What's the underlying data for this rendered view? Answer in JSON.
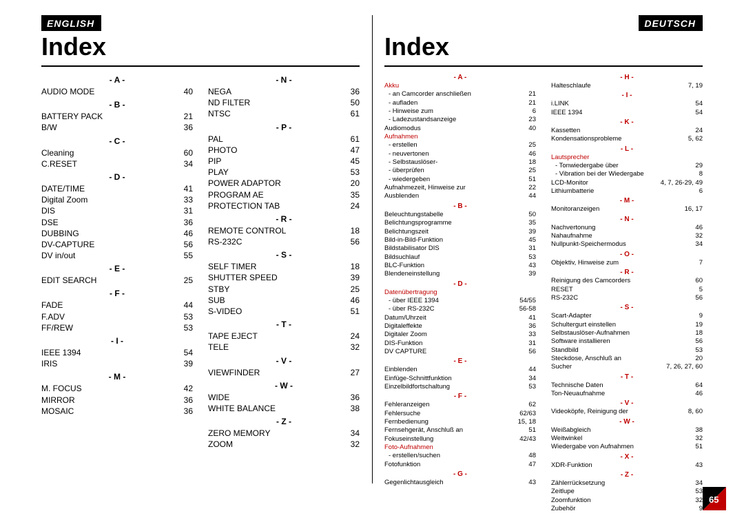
{
  "page_number": "65",
  "english": {
    "lang_label": "ENGLISH",
    "title": "Index",
    "columns": [
      [
        {
          "type": "letter",
          "text": "- A -"
        },
        {
          "type": "entry",
          "label": "AUDIO MODE",
          "page": "40"
        },
        {
          "type": "letter",
          "text": "- B -"
        },
        {
          "type": "entry",
          "label": "BATTERY PACK",
          "page": "21"
        },
        {
          "type": "entry",
          "label": "B/W",
          "page": "36"
        },
        {
          "type": "letter",
          "text": "- C -"
        },
        {
          "type": "entry",
          "label": "Cleaning",
          "page": "60"
        },
        {
          "type": "entry",
          "label": "C.RESET",
          "page": "34"
        },
        {
          "type": "letter",
          "text": "- D -"
        },
        {
          "type": "entry",
          "label": "DATE/TIME",
          "page": "41"
        },
        {
          "type": "entry",
          "label": "Digital Zoom",
          "page": "33"
        },
        {
          "type": "entry",
          "label": "DIS",
          "page": "31"
        },
        {
          "type": "entry",
          "label": "DSE",
          "page": "36"
        },
        {
          "type": "entry",
          "label": "DUBBING",
          "page": "46"
        },
        {
          "type": "entry",
          "label": "DV-CAPTURE",
          "page": "56"
        },
        {
          "type": "entry",
          "label": "DV in/out",
          "page": "55"
        },
        {
          "type": "letter",
          "text": "- E -"
        },
        {
          "type": "entry",
          "label": "EDIT SEARCH",
          "page": "25"
        },
        {
          "type": "letter",
          "text": "- F -"
        },
        {
          "type": "entry",
          "label": "FADE",
          "page": "44"
        },
        {
          "type": "entry",
          "label": "F.ADV",
          "page": "53"
        },
        {
          "type": "entry",
          "label": "FF/REW",
          "page": "53"
        },
        {
          "type": "letter",
          "text": "- I -"
        },
        {
          "type": "entry",
          "label": "IEEE 1394",
          "page": "54"
        },
        {
          "type": "entry",
          "label": "IRIS",
          "page": "39"
        },
        {
          "type": "letter",
          "text": "- M -"
        },
        {
          "type": "entry",
          "label": "M. FOCUS",
          "page": "42"
        },
        {
          "type": "entry",
          "label": "MIRROR",
          "page": "36"
        },
        {
          "type": "entry",
          "label": "MOSAIC",
          "page": "36"
        }
      ],
      [
        {
          "type": "letter",
          "text": "- N -"
        },
        {
          "type": "entry",
          "label": "NEGA",
          "page": "36"
        },
        {
          "type": "entry",
          "label": "ND FILTER",
          "page": "50"
        },
        {
          "type": "entry",
          "label": "NTSC",
          "page": "61"
        },
        {
          "type": "letter",
          "text": "- P -"
        },
        {
          "type": "entry",
          "label": "PAL",
          "page": "61"
        },
        {
          "type": "entry",
          "label": "PHOTO",
          "page": "47"
        },
        {
          "type": "entry",
          "label": "PIP",
          "page": "45"
        },
        {
          "type": "entry",
          "label": "PLAY",
          "page": "53"
        },
        {
          "type": "entry",
          "label": "POWER ADAPTOR",
          "page": "20"
        },
        {
          "type": "entry",
          "label": "PROGRAM AE",
          "page": "35"
        },
        {
          "type": "entry",
          "label": "PROTECTION TAB",
          "page": "24"
        },
        {
          "type": "letter",
          "text": "- R -"
        },
        {
          "type": "entry",
          "label": "REMOTE CONTROL",
          "page": "18"
        },
        {
          "type": "entry",
          "label": "RS-232C",
          "page": "56"
        },
        {
          "type": "letter",
          "text": "- S -"
        },
        {
          "type": "entry",
          "label": "SELF TIMER",
          "page": "18"
        },
        {
          "type": "entry",
          "label": "SHUTTER SPEED",
          "page": "39"
        },
        {
          "type": "entry",
          "label": "STBY",
          "page": "25"
        },
        {
          "type": "entry",
          "label": "SUB",
          "page": "46"
        },
        {
          "type": "entry",
          "label": "S-VIDEO",
          "page": "51"
        },
        {
          "type": "letter",
          "text": "- T -"
        },
        {
          "type": "entry",
          "label": "TAPE EJECT",
          "page": "24"
        },
        {
          "type": "entry",
          "label": "TELE",
          "page": "32"
        },
        {
          "type": "letter",
          "text": "- V -"
        },
        {
          "type": "entry",
          "label": "VIEWFINDER",
          "page": "27"
        },
        {
          "type": "letter",
          "text": "- W -"
        },
        {
          "type": "entry",
          "label": "WIDE",
          "page": "36"
        },
        {
          "type": "entry",
          "label": "WHITE BALANCE",
          "page": "38"
        },
        {
          "type": "letter",
          "text": "- Z -"
        },
        {
          "type": "entry",
          "label": "ZERO MEMORY",
          "page": "34"
        },
        {
          "type": "entry",
          "label": "ZOOM",
          "page": "32"
        }
      ]
    ]
  },
  "deutsch": {
    "lang_label": "DEUTSCH",
    "title": "Index",
    "columns": [
      [
        {
          "type": "letter",
          "text": "- A -"
        },
        {
          "type": "entry",
          "label": "Akku",
          "page": "",
          "red": true,
          "nodots": true
        },
        {
          "type": "entry",
          "label": "- an Camcorder anschließen",
          "page": "21",
          "sub": true
        },
        {
          "type": "entry",
          "label": "- aufladen",
          "page": "21",
          "sub": true
        },
        {
          "type": "entry",
          "label": "- Hinweise zum",
          "page": "6",
          "sub": true
        },
        {
          "type": "entry",
          "label": "- Ladezustandsanzeige",
          "page": "23",
          "sub": true
        },
        {
          "type": "entry",
          "label": "Audiomodus",
          "page": "40"
        },
        {
          "type": "entry",
          "label": "Aufnahmen",
          "page": "",
          "red": true,
          "nodots": true
        },
        {
          "type": "entry",
          "label": "- erstellen",
          "page": "25",
          "sub": true
        },
        {
          "type": "entry",
          "label": "- neuvertonen",
          "page": "46",
          "sub": true
        },
        {
          "type": "entry",
          "label": "- Selbstauslöser-",
          "page": "18",
          "sub": true
        },
        {
          "type": "entry",
          "label": "- überprüfen",
          "page": "25",
          "sub": true
        },
        {
          "type": "entry",
          "label": "- wiedergeben",
          "page": "51",
          "sub": true
        },
        {
          "type": "entry",
          "label": "Aufnahmezeit, Hinweise zur",
          "page": "22"
        },
        {
          "type": "entry",
          "label": "Ausblenden",
          "page": "44"
        },
        {
          "type": "letter",
          "text": "- B -"
        },
        {
          "type": "entry",
          "label": "Beleuchtungstabelle",
          "page": "50"
        },
        {
          "type": "entry",
          "label": "Belichtungsprogramme",
          "page": "35"
        },
        {
          "type": "entry",
          "label": "Belichtungszeit",
          "page": "39"
        },
        {
          "type": "entry",
          "label": "Bild-in-Bild-Funktion",
          "page": "45"
        },
        {
          "type": "entry",
          "label": "Bildstabilisator DIS",
          "page": "31"
        },
        {
          "type": "entry",
          "label": "Bildsuchlauf",
          "page": "53"
        },
        {
          "type": "entry",
          "label": "BLC-Funktion",
          "page": "43"
        },
        {
          "type": "entry",
          "label": "Blendeneinstellung",
          "page": "39"
        },
        {
          "type": "letter",
          "text": "- D -"
        },
        {
          "type": "entry",
          "label": "Datenübertragung",
          "page": "",
          "red": true,
          "nodots": true
        },
        {
          "type": "entry",
          "label": "- über IEEE 1394",
          "page": "54/55",
          "sub": true
        },
        {
          "type": "entry",
          "label": "- über RS-232C",
          "page": "56-58",
          "sub": true
        },
        {
          "type": "entry",
          "label": "Datum/Uhrzeit",
          "page": "41"
        },
        {
          "type": "entry",
          "label": "Digitaleffekte",
          "page": "36"
        },
        {
          "type": "entry",
          "label": "Digitaler Zoom",
          "page": "33"
        },
        {
          "type": "entry",
          "label": "DIS-Funktion",
          "page": "31"
        },
        {
          "type": "entry",
          "label": "DV CAPTURE",
          "page": "56"
        },
        {
          "type": "letter",
          "text": "- E -"
        },
        {
          "type": "entry",
          "label": "Einblenden",
          "page": "44"
        },
        {
          "type": "entry",
          "label": "Einfüge-Schnittfunktion",
          "page": "34"
        },
        {
          "type": "entry",
          "label": "Einzelbildfortschaltung",
          "page": "53"
        },
        {
          "type": "letter",
          "text": "- F -"
        },
        {
          "type": "entry",
          "label": "Fehleranzeigen",
          "page": "62"
        },
        {
          "type": "entry",
          "label": "Fehlersuche",
          "page": "62/63"
        },
        {
          "type": "entry",
          "label": "Fernbedienung",
          "page": "15, 18"
        },
        {
          "type": "entry",
          "label": "Fernsehgerät, Anschluß an",
          "page": "51"
        },
        {
          "type": "entry",
          "label": "Fokuseinstellung",
          "page": "42/43"
        },
        {
          "type": "entry",
          "label": "Foto-Aufnahmen",
          "page": "",
          "red": true,
          "nodots": true
        },
        {
          "type": "entry",
          "label": "- erstellen/suchen",
          "page": "48",
          "sub": true
        },
        {
          "type": "entry",
          "label": "Fotofunktion",
          "page": "47"
        },
        {
          "type": "letter",
          "text": "- G -"
        },
        {
          "type": "entry",
          "label": "Gegenlichtausgleich",
          "page": "43"
        }
      ],
      [
        {
          "type": "letter",
          "text": "- H -"
        },
        {
          "type": "entry",
          "label": "Halteschlaufe",
          "page": "7, 19"
        },
        {
          "type": "letter",
          "text": "- I -"
        },
        {
          "type": "entry",
          "label": "i.LINK",
          "page": "54"
        },
        {
          "type": "entry",
          "label": "IEEE 1394",
          "page": "54"
        },
        {
          "type": "letter",
          "text": "- K -"
        },
        {
          "type": "entry",
          "label": "Kassetten",
          "page": "24"
        },
        {
          "type": "entry",
          "label": "Kondensationsprobleme",
          "page": "5, 62"
        },
        {
          "type": "letter",
          "text": "- L -"
        },
        {
          "type": "entry",
          "label": "Lautsprecher",
          "page": "",
          "red": true,
          "nodots": true
        },
        {
          "type": "entry",
          "label": "- Tonwiedergabe über",
          "page": "29",
          "sub": true
        },
        {
          "type": "entry",
          "label": "- Vibration bei der Wiedergabe",
          "page": "8",
          "sub": true
        },
        {
          "type": "entry",
          "label": "LCD-Monitor",
          "page": "4, 7, 26-29, 49"
        },
        {
          "type": "entry",
          "label": "Lithiumbatterie",
          "page": "6"
        },
        {
          "type": "letter",
          "text": "- M -"
        },
        {
          "type": "entry",
          "label": "Monitoranzeigen",
          "page": "16, 17"
        },
        {
          "type": "letter",
          "text": "- N -"
        },
        {
          "type": "entry",
          "label": "Nachvertonung",
          "page": "46"
        },
        {
          "type": "entry",
          "label": "Nahaufnahme",
          "page": "32"
        },
        {
          "type": "entry",
          "label": "Nullpunkt-Speichermodus",
          "page": "34"
        },
        {
          "type": "letter",
          "text": "- O -"
        },
        {
          "type": "entry",
          "label": "Objektiv, Hinweise zum",
          "page": "7"
        },
        {
          "type": "letter",
          "text": "- R -"
        },
        {
          "type": "entry",
          "label": "Reinigung des Camcorders",
          "page": "60"
        },
        {
          "type": "entry",
          "label": "RESET",
          "page": "5"
        },
        {
          "type": "entry",
          "label": "RS-232C",
          "page": "56"
        },
        {
          "type": "letter",
          "text": "- S -"
        },
        {
          "type": "entry",
          "label": "Scart-Adapter",
          "page": "9"
        },
        {
          "type": "entry",
          "label": "Schultergurt einstellen",
          "page": "19"
        },
        {
          "type": "entry",
          "label": "Selbstauslöser-Aufnahmen",
          "page": "18"
        },
        {
          "type": "entry",
          "label": "Software installieren",
          "page": "56"
        },
        {
          "type": "entry",
          "label": "Standbild",
          "page": "53"
        },
        {
          "type": "entry",
          "label": "Steckdose, Anschluß an",
          "page": "20"
        },
        {
          "type": "entry",
          "label": "Sucher",
          "page": "7, 26, 27, 60"
        },
        {
          "type": "letter",
          "text": "- T -"
        },
        {
          "type": "entry",
          "label": "Technische Daten",
          "page": "64"
        },
        {
          "type": "entry",
          "label": "Ton-Neuaufnahme",
          "page": "46"
        },
        {
          "type": "letter",
          "text": "- V -"
        },
        {
          "type": "entry",
          "label": "Videoköpfe, Reinigung der",
          "page": "8, 60"
        },
        {
          "type": "letter",
          "text": "- W -"
        },
        {
          "type": "entry",
          "label": "Weißabgleich",
          "page": "38"
        },
        {
          "type": "entry",
          "label": "Weitwinkel",
          "page": "32"
        },
        {
          "type": "entry",
          "label": "Wiedergabe von Aufnahmen",
          "page": "51"
        },
        {
          "type": "letter",
          "text": "- X -"
        },
        {
          "type": "entry",
          "label": "XDR-Funktion",
          "page": "43"
        },
        {
          "type": "letter",
          "text": "- Z -"
        },
        {
          "type": "entry",
          "label": "Zählerrücksetzung",
          "page": "34"
        },
        {
          "type": "entry",
          "label": "Zeitlupe",
          "page": "53"
        },
        {
          "type": "entry",
          "label": "Zoomfunktion",
          "page": "32"
        },
        {
          "type": "entry",
          "label": "Zubehör",
          "page": "9"
        }
      ]
    ]
  }
}
